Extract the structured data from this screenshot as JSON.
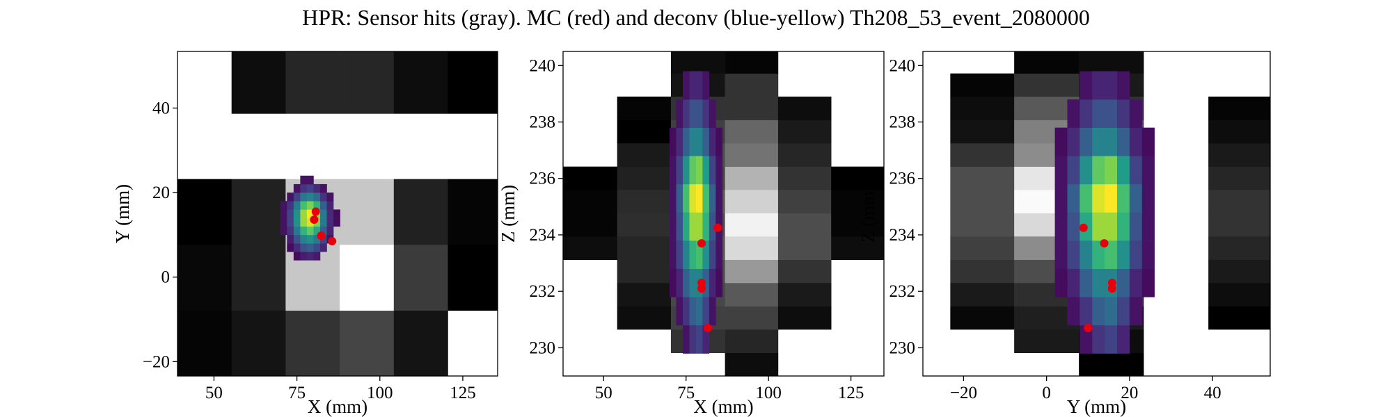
{
  "title": "HPR: Sensor hits (gray). MC (red) and deconv (blue-yellow) Th208_53_event_2080000",
  "chart_data": [
    {
      "type": "heatmap",
      "xlabel": "X (mm)",
      "ylabel": "Y (mm)",
      "xlim": [
        39,
        135.5
      ],
      "ylim": [
        -23.4,
        53.4
      ],
      "xticks": [
        50,
        75,
        100,
        125
      ],
      "yticks": [
        {
          "value": -20,
          "label": "−20"
        },
        0,
        20,
        40
      ],
      "cmap": "gray",
      "x": [
        39,
        55.3,
        71.6,
        87.9,
        104.2,
        120.5,
        136.8
      ],
      "y": [
        -23.4,
        -7.9,
        7.7,
        23.2,
        38.7,
        54.2
      ],
      "values": [
        [
          0.02,
          0.08,
          0.2,
          0.27,
          0.08,
          null
        ],
        [
          0.03,
          0.13,
          0.78,
          1.0,
          0.23,
          0.0
        ],
        [
          0.0,
          0.13,
          0.78,
          0.78,
          0.13,
          0.02
        ],
        [
          null,
          null,
          null,
          null,
          null,
          null
        ],
        [
          null,
          0.05,
          0.15,
          0.15,
          0.05,
          0.0
        ]
      ],
      "deconv": {
        "cmap": "viridis",
        "x": [
          70,
          72,
          74,
          76,
          78,
          80,
          82,
          84,
          86,
          88
        ],
        "y": [
          4,
          6,
          8,
          10,
          12,
          14,
          16,
          18,
          20,
          22,
          24
        ],
        "values": [
          [
            null,
            null,
            0.03,
            0.08,
            0.1,
            0.07,
            null,
            null,
            null
          ],
          [
            null,
            0.03,
            0.12,
            0.25,
            0.3,
            0.22,
            0.1,
            null,
            null
          ],
          [
            null,
            0.08,
            0.25,
            0.45,
            0.5,
            0.4,
            0.2,
            0.05,
            null
          ],
          [
            0.05,
            0.15,
            0.4,
            0.65,
            0.75,
            0.6,
            0.3,
            0.1,
            null
          ],
          [
            0.05,
            0.2,
            0.5,
            0.85,
            0.95,
            0.8,
            0.4,
            0.12,
            0.03
          ],
          [
            0.05,
            0.2,
            0.5,
            0.85,
            1.0,
            0.85,
            0.4,
            0.12,
            0.03
          ],
          [
            0.05,
            0.15,
            0.4,
            0.7,
            0.8,
            0.65,
            0.3,
            0.1,
            null
          ],
          [
            null,
            0.05,
            0.2,
            0.4,
            0.45,
            0.35,
            0.15,
            0.05,
            null
          ],
          [
            null,
            null,
            0.05,
            0.15,
            0.2,
            0.12,
            0.05,
            null,
            null
          ],
          [
            null,
            null,
            null,
            0.05,
            0.05,
            null,
            null,
            null,
            null
          ]
        ]
      },
      "series": [
        {
          "type": "scatter",
          "color": "#e8000b",
          "x": [
            80.7,
            80.2,
            82.3,
            85.6
          ],
          "values": [
            15.5,
            13.6,
            9.8,
            8.5
          ]
        }
      ]
    },
    {
      "type": "heatmap",
      "xlabel": "X (mm)",
      "ylabel": "Z (mm)",
      "xlim": [
        37.7,
        135
      ],
      "ylim": [
        229,
        240.5
      ],
      "xticks": [
        50,
        75,
        100,
        125
      ],
      "yticks": [
        230,
        232,
        234,
        236,
        238,
        240
      ],
      "cmap": "gray",
      "x": [
        37.7,
        54.1,
        70.4,
        86.8,
        102.9,
        119,
        135
      ],
      "y": [
        229,
        229.82,
        230.65,
        231.47,
        232.3,
        233.12,
        233.95,
        234.77,
        235.6,
        236.42,
        237.25,
        238.07,
        238.9,
        239.72,
        240.54
      ],
      "values": [
        [
          null,
          null,
          null,
          0.05,
          null,
          null
        ],
        [
          null,
          null,
          0.2,
          0.15,
          null,
          null
        ],
        [
          null,
          0.05,
          0.25,
          0.25,
          0.05,
          null
        ],
        [
          null,
          0.08,
          0.28,
          0.35,
          0.1,
          null
        ],
        [
          null,
          0.15,
          0.3,
          0.6,
          0.2,
          null
        ],
        [
          0.05,
          0.15,
          0.35,
          0.85,
          0.3,
          0.05
        ],
        [
          0.02,
          0.18,
          0.3,
          0.95,
          0.3,
          0.02
        ],
        [
          0.02,
          0.17,
          0.35,
          0.82,
          0.25,
          0.02
        ],
        [
          0.0,
          0.13,
          0.28,
          0.7,
          0.2,
          0.0
        ],
        [
          null,
          0.1,
          0.3,
          0.45,
          0.15,
          null
        ],
        [
          null,
          0.0,
          0.25,
          0.4,
          0.1,
          null
        ],
        [
          null,
          0.02,
          0.2,
          0.2,
          0.05,
          null
        ],
        [
          null,
          null,
          0.08,
          0.2,
          null,
          null
        ],
        [
          null,
          null,
          0.05,
          0.02,
          null,
          null
        ]
      ],
      "deconv": {
        "cmap": "viridis",
        "x": [
          70,
          72,
          74,
          76,
          78,
          80,
          82,
          84,
          86
        ],
        "y": [
          229.8,
          230.8,
          231.8,
          232.8,
          233.8,
          234.8,
          235.8,
          236.8,
          237.8,
          238.8,
          239.8
        ],
        "values": [
          [
            null,
            null,
            0.05,
            0.15,
            0.2,
            0.1,
            null,
            null
          ],
          [
            null,
            0.05,
            0.15,
            0.3,
            0.35,
            0.2,
            0.05,
            null
          ],
          [
            0.03,
            0.1,
            0.3,
            0.45,
            0.45,
            0.3,
            0.1,
            0.03
          ],
          [
            0.05,
            0.2,
            0.45,
            0.65,
            0.7,
            0.5,
            0.2,
            0.05
          ],
          [
            0.05,
            0.25,
            0.6,
            0.85,
            0.85,
            0.65,
            0.25,
            0.05
          ],
          [
            0.05,
            0.3,
            0.7,
            0.95,
            1.0,
            0.7,
            0.3,
            0.05
          ],
          [
            0.05,
            0.2,
            0.5,
            0.75,
            0.8,
            0.55,
            0.2,
            0.05
          ],
          [
            0.03,
            0.12,
            0.3,
            0.45,
            0.45,
            0.3,
            0.1,
            0.03
          ],
          [
            null,
            0.05,
            0.15,
            0.25,
            0.25,
            0.15,
            0.05,
            null
          ],
          [
            null,
            null,
            0.05,
            0.1,
            0.1,
            0.05,
            null,
            null
          ]
        ]
      },
      "series": [
        {
          "type": "scatter",
          "color": "#e8000b",
          "x": [
            79.7,
            84.6,
            79.7,
            79.7,
            81.6
          ],
          "values": [
            233.7,
            234.25,
            232.3,
            232.1,
            230.7
          ]
        }
      ]
    },
    {
      "type": "heatmap",
      "xlabel": "Y (mm)",
      "ylabel": "Z (mm)",
      "xlim": [
        -29.8,
        53.9
      ],
      "ylim": [
        229,
        240.5
      ],
      "xticks": [
        {
          "value": -20,
          "label": "−20"
        },
        0,
        20,
        40
      ],
      "yticks": [
        230,
        232,
        234,
        236,
        238,
        240
      ],
      "cmap": "gray",
      "x": [
        -23.2,
        -7.8,
        7.8,
        23.4,
        39.0,
        54.0
      ],
      "y": [
        229,
        229.82,
        230.65,
        231.47,
        232.3,
        233.12,
        233.95,
        234.77,
        235.6,
        236.42,
        237.25,
        238.07,
        238.9,
        239.72,
        240.54
      ],
      "values": [
        [
          null,
          null,
          0.0,
          null,
          null
        ],
        [
          null,
          0.1,
          0.05,
          null,
          null
        ],
        [
          0.03,
          0.12,
          0.1,
          null,
          0.0
        ],
        [
          0.1,
          0.18,
          0.2,
          null,
          0.05
        ],
        [
          0.2,
          0.3,
          0.3,
          null,
          0.1
        ],
        [
          0.25,
          0.55,
          0.35,
          null,
          0.15
        ],
        [
          0.3,
          0.85,
          0.45,
          null,
          0.2
        ],
        [
          0.3,
          0.98,
          0.5,
          null,
          0.2
        ],
        [
          0.3,
          0.9,
          0.45,
          null,
          0.15
        ],
        [
          0.2,
          0.55,
          0.35,
          null,
          0.1
        ],
        [
          0.07,
          0.5,
          0.3,
          null,
          0.05
        ],
        [
          0.05,
          0.35,
          0.2,
          null,
          0.02
        ],
        [
          0.02,
          0.2,
          0.1,
          null,
          null
        ],
        [
          null,
          0.02,
          0.05,
          null,
          null
        ]
      ],
      "deconv": {
        "cmap": "viridis",
        "x": [
          2,
          5,
          8,
          11,
          14,
          17,
          20,
          23,
          26
        ],
        "y": [
          229.8,
          230.8,
          231.8,
          232.8,
          233.8,
          234.8,
          235.8,
          236.8,
          237.8,
          238.8,
          239.8
        ],
        "values": [
          [
            null,
            null,
            0.05,
            0.15,
            0.2,
            0.1,
            null,
            null
          ],
          [
            null,
            0.05,
            0.15,
            0.3,
            0.35,
            0.2,
            0.05,
            null
          ],
          [
            0.03,
            0.1,
            0.3,
            0.45,
            0.45,
            0.3,
            0.1,
            0.03
          ],
          [
            0.05,
            0.2,
            0.45,
            0.65,
            0.7,
            0.5,
            0.2,
            0.05
          ],
          [
            0.05,
            0.25,
            0.6,
            0.85,
            0.85,
            0.65,
            0.25,
            0.05
          ],
          [
            0.05,
            0.3,
            0.7,
            0.95,
            1.0,
            0.7,
            0.3,
            0.05
          ],
          [
            0.05,
            0.2,
            0.5,
            0.75,
            0.8,
            0.55,
            0.2,
            0.05
          ],
          [
            0.03,
            0.12,
            0.3,
            0.45,
            0.45,
            0.3,
            0.1,
            0.03
          ],
          [
            null,
            0.05,
            0.15,
            0.25,
            0.25,
            0.15,
            0.05,
            null
          ],
          [
            null,
            null,
            0.05,
            0.1,
            0.1,
            0.05,
            null,
            null
          ]
        ]
      },
      "series": [
        {
          "type": "scatter",
          "color": "#e8000b",
          "x": [
            13.9,
            8.9,
            15.8,
            15.8,
            10.0
          ],
          "values": [
            233.7,
            234.25,
            232.3,
            232.1,
            230.7
          ]
        }
      ]
    }
  ]
}
